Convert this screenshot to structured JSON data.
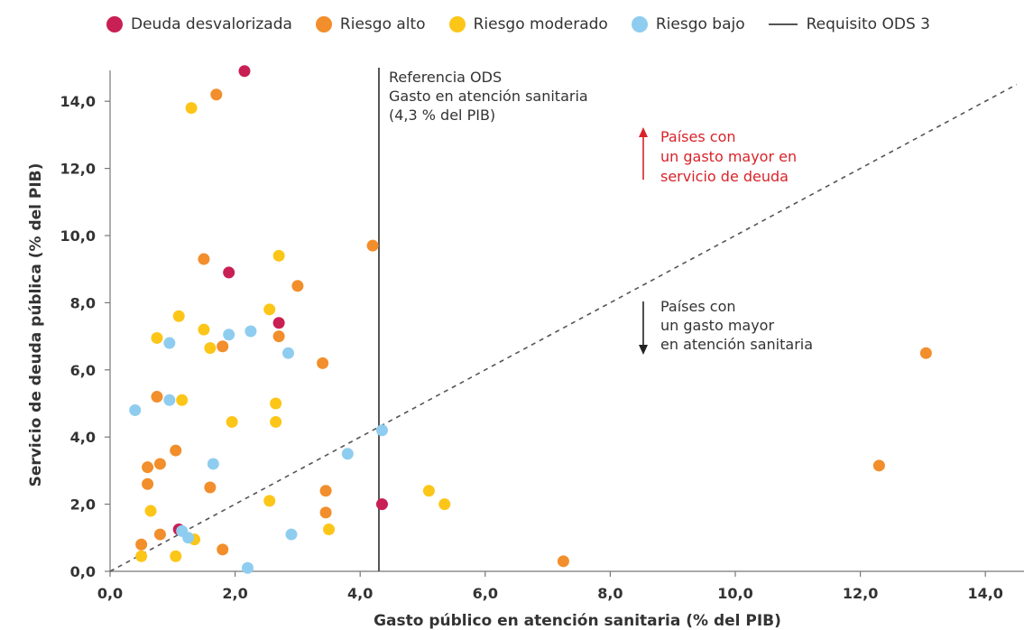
{
  "legend": {
    "items": [
      {
        "label": "Deuda desvalorizada",
        "color": "#c81f55",
        "kind": "dot"
      },
      {
        "label": "Riesgo alto",
        "color": "#f28e2b",
        "kind": "dot"
      },
      {
        "label": "Riesgo moderado",
        "color": "#fcc619",
        "kind": "dot"
      },
      {
        "label": "Riesgo bajo",
        "color": "#8ecdef",
        "kind": "dot"
      },
      {
        "label": "Requisito ODS 3",
        "color": "#555555",
        "kind": "line"
      }
    ]
  },
  "chart_data": {
    "type": "scatter",
    "title": "",
    "xlabel": "Gasto público en atención sanitaria (% del PIB)",
    "ylabel": "Servicio de deuda pública (% del PIB)",
    "xlim": [
      0,
      14.5
    ],
    "ylim": [
      0,
      15
    ],
    "x_ticks": [
      "0,0",
      "2,0",
      "4,0",
      "6,0",
      "8,0",
      "10,0",
      "12,0",
      "14,0"
    ],
    "y_ticks": [
      "0,0",
      "2,0",
      "4,0",
      "6,0",
      "8,0",
      "10,0",
      "12,0",
      "14,0"
    ],
    "grid": false,
    "legend_position": "top",
    "reference_line": {
      "x": 4.3,
      "label_lines": [
        "Referencia ODS",
        "Gasto en atención sanitaria",
        "(4,3 % del PIB)"
      ]
    },
    "diagonal": {
      "x0": 0,
      "y0": 0,
      "x1": 14.5,
      "y1": 14.5,
      "style": "dashed"
    },
    "annotations": {
      "upper": {
        "lines": [
          "Países con",
          "un gasto mayor en",
          "servicio de deuda"
        ],
        "color": "#d8232a"
      },
      "lower": {
        "lines": [
          "Países con",
          "un gasto mayor",
          "en atención sanitaria"
        ],
        "color": "#333333"
      }
    },
    "series": [
      {
        "name": "Deuda desvalorizada",
        "color": "#c81f55",
        "points": [
          [
            2.15,
            14.9
          ],
          [
            1.9,
            8.9
          ],
          [
            2.7,
            7.4
          ],
          [
            1.1,
            1.25
          ],
          [
            4.35,
            2.0
          ]
        ]
      },
      {
        "name": "Riesgo alto",
        "color": "#f28e2b",
        "points": [
          [
            1.7,
            14.2
          ],
          [
            1.5,
            9.3
          ],
          [
            4.2,
            9.7
          ],
          [
            3.0,
            8.5
          ],
          [
            2.7,
            7.0
          ],
          [
            1.8,
            6.7
          ],
          [
            3.4,
            6.2
          ],
          [
            0.75,
            5.2
          ],
          [
            1.05,
            3.6
          ],
          [
            0.6,
            3.1
          ],
          [
            0.8,
            3.2
          ],
          [
            0.6,
            2.6
          ],
          [
            1.6,
            2.5
          ],
          [
            3.45,
            2.4
          ],
          [
            3.45,
            1.75
          ],
          [
            0.8,
            1.1
          ],
          [
            0.5,
            0.8
          ],
          [
            1.8,
            0.65
          ],
          [
            7.25,
            0.3
          ],
          [
            12.3,
            3.15
          ],
          [
            13.05,
            6.5
          ]
        ]
      },
      {
        "name": "Riesgo moderado",
        "color": "#fcc619",
        "points": [
          [
            1.3,
            13.8
          ],
          [
            2.7,
            9.4
          ],
          [
            1.1,
            7.6
          ],
          [
            2.55,
            7.8
          ],
          [
            1.5,
            7.2
          ],
          [
            0.75,
            6.95
          ],
          [
            1.6,
            6.65
          ],
          [
            1.15,
            5.1
          ],
          [
            2.65,
            5.0
          ],
          [
            1.95,
            4.45
          ],
          [
            2.65,
            4.45
          ],
          [
            2.55,
            2.1
          ],
          [
            0.65,
            1.8
          ],
          [
            1.35,
            0.95
          ],
          [
            0.5,
            0.45
          ],
          [
            1.05,
            0.45
          ],
          [
            3.5,
            1.25
          ],
          [
            5.1,
            2.4
          ],
          [
            5.35,
            2.0
          ]
        ]
      },
      {
        "name": "Riesgo bajo",
        "color": "#8ecdef",
        "points": [
          [
            0.95,
            6.8
          ],
          [
            1.9,
            7.05
          ],
          [
            2.25,
            7.15
          ],
          [
            2.85,
            6.5
          ],
          [
            0.4,
            4.8
          ],
          [
            0.95,
            5.1
          ],
          [
            1.65,
            3.2
          ],
          [
            3.8,
            3.5
          ],
          [
            4.35,
            4.2
          ],
          [
            2.9,
            1.1
          ],
          [
            1.15,
            1.2
          ],
          [
            1.25,
            1.0
          ],
          [
            2.2,
            0.1
          ]
        ]
      }
    ]
  }
}
